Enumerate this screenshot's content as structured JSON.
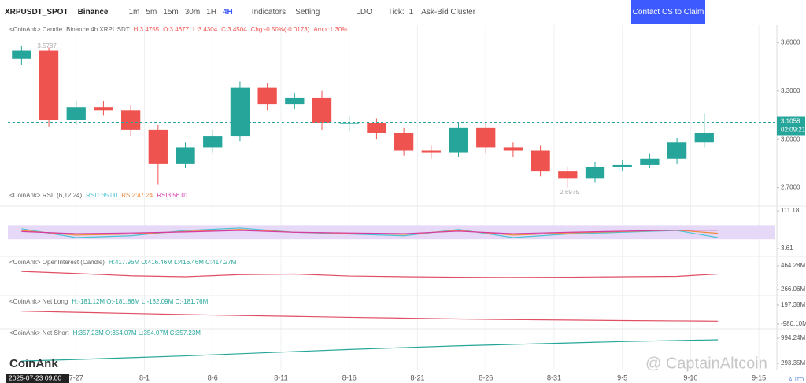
{
  "toolbar": {
    "symbol": "XRPUSDT_SPOT",
    "exchange": "Binance",
    "intervals": [
      "1m",
      "5m",
      "15m",
      "30m",
      "1H",
      "4H"
    ],
    "active_interval": "4H",
    "indicators": "Indicators",
    "setting": "Setting",
    "coin": "LDO",
    "tick": "Tick:",
    "tick_value": "1",
    "cluster": "Ask-Bid Cluster",
    "cta": "Contact CS to Claim"
  },
  "watermark": "CoinAnk",
  "credit": "@ CaptainAltcoin",
  "cursor_time": "2025-07-23 09:00",
  "auto": "AUTO",
  "countdown": "02:09:21",
  "chart_data": [
    {
      "type": "candlestick",
      "title": "<CoinAnk> Candle",
      "subtitle": "Binance 4h XRPUSDT",
      "legend_text": [
        "H:3.4755",
        "O:3.4677",
        "L:3.4304",
        "C:3.4504",
        "Chg:-0.50%(-0.0173)",
        "Ampl:1.30%"
      ],
      "up_color": "#26a69a",
      "down_color": "#ef5350",
      "x": [
        0,
        2,
        4,
        6,
        8,
        10,
        12,
        14,
        16,
        18,
        20,
        22,
        24,
        26,
        28,
        30,
        32,
        34,
        36,
        38,
        40,
        42,
        44,
        46,
        48,
        50
      ],
      "open": [
        3.5,
        3.55,
        3.12,
        3.2,
        3.18,
        3.06,
        2.85,
        2.95,
        3.02,
        3.32,
        3.22,
        3.26,
        3.1,
        3.1,
        3.04,
        2.93,
        2.92,
        3.07,
        2.95,
        2.93,
        2.8,
        2.76,
        2.83,
        2.84,
        2.88,
        2.98
      ],
      "high": [
        3.58,
        3.57,
        3.24,
        3.24,
        3.21,
        3.09,
        2.98,
        3.06,
        3.36,
        3.35,
        3.29,
        3.3,
        3.14,
        3.13,
        3.07,
        2.96,
        3.1,
        3.1,
        2.98,
        2.96,
        2.83,
        2.86,
        2.87,
        2.91,
        3.01,
        3.16
      ],
      "low": [
        3.46,
        3.08,
        3.09,
        3.15,
        3.02,
        2.72,
        2.82,
        2.92,
        2.99,
        3.18,
        3.19,
        3.06,
        3.05,
        3.0,
        2.9,
        2.88,
        2.89,
        2.91,
        2.89,
        2.77,
        2.7,
        2.73,
        2.8,
        2.82,
        2.85,
        2.95
      ],
      "close": [
        3.55,
        3.12,
        3.2,
        3.18,
        3.06,
        2.85,
        2.95,
        3.02,
        3.32,
        3.22,
        3.26,
        3.1,
        3.1,
        3.04,
        2.93,
        2.92,
        3.07,
        2.95,
        2.93,
        2.8,
        2.76,
        2.83,
        2.84,
        2.88,
        2.98,
        3.04
      ],
      "high_mark": 3.5787,
      "low_mark": 2.6975,
      "last_price": 3.1058,
      "xlim": [
        -1,
        55.2
      ],
      "xticks": [
        {
          "value": 4,
          "label": "7-27"
        },
        {
          "value": 9,
          "label": "8-1"
        },
        {
          "value": 14,
          "label": "8-6"
        },
        {
          "value": 19,
          "label": "8-11"
        },
        {
          "value": 24,
          "label": "8-16"
        },
        {
          "value": 29,
          "label": "8-21"
        },
        {
          "value": 34,
          "label": "8-26"
        },
        {
          "value": 39,
          "label": "8-31"
        },
        {
          "value": 44,
          "label": "9-5"
        },
        {
          "value": 49,
          "label": "9-10"
        },
        {
          "value": 54,
          "label": "9-15"
        }
      ],
      "ylim": [
        2.62,
        3.66
      ],
      "yticks": [
        {
          "value": 3.6,
          "label": "3.6000"
        },
        {
          "value": 3.3,
          "label": "3.3000"
        },
        {
          "value": 3.0,
          "label": "3.0000"
        },
        {
          "value": 2.7,
          "label": "2.7000"
        }
      ]
    },
    {
      "type": "line",
      "title": "<CoinAnk> RSI",
      "subtitle": "(6,12,24)",
      "band": [
        30,
        70
      ],
      "band_color": "#e6d9f7",
      "x": [
        0,
        4,
        8,
        12,
        16,
        20,
        24,
        28,
        32,
        36,
        40,
        44,
        48,
        51
      ],
      "series": [
        {
          "name": "RSI1:35.00",
          "color": "#4dc3d6",
          "values": [
            60,
            35,
            40,
            55,
            62,
            50,
            45,
            40,
            58,
            35,
            45,
            50,
            55,
            35
          ]
        },
        {
          "name": "RSI2:47.24",
          "color": "#f08a3c",
          "values": [
            55,
            42,
            45,
            52,
            58,
            50,
            47,
            44,
            55,
            42,
            48,
            52,
            56,
            47
          ]
        },
        {
          "name": "RSI3:56.01",
          "color": "#d63aa4",
          "values": [
            52,
            46,
            48,
            51,
            55,
            50,
            48,
            46,
            53,
            46,
            50,
            53,
            56,
            56
          ]
        }
      ],
      "ylim": [
        3.61,
        111.18
      ],
      "yticks": [
        111.18,
        3.61
      ]
    },
    {
      "type": "line",
      "title": "<CoinAnk> OpenInterest (Candle)",
      "legend_text": "H:417.96M O:416.46M L:416.46M C:417.27M",
      "x": [
        0,
        4,
        8,
        12,
        16,
        20,
        24,
        28,
        32,
        36,
        40,
        44,
        48,
        51
      ],
      "series": [
        {
          "color": "#e04e63",
          "values": [
            417,
            400,
            380,
            372,
            390,
            395,
            378,
            372,
            368,
            366,
            368,
            372,
            375,
            395
          ]
        }
      ],
      "ylim": [
        266.06,
        464.28
      ],
      "yticks": [
        {
          "value": 464.28,
          "label": "464.28M"
        },
        {
          "value": 266.06,
          "label": "266.06M"
        }
      ]
    },
    {
      "type": "line",
      "title": "<CoinAnk> Net Long",
      "legend_text": "H:-181.12M O:-181.86M L:-182.09M C:-181.76M",
      "x": [
        0,
        4,
        8,
        12,
        16,
        20,
        24,
        28,
        32,
        36,
        40,
        44,
        48,
        51
      ],
      "series": [
        {
          "color": "#e04e63",
          "values": [
            -181,
            -250,
            -320,
            -390,
            -450,
            -500,
            -560,
            -610,
            -660,
            -700,
            -730,
            -760,
            -780,
            -800
          ]
        }
      ],
      "ylim": [
        -980.1,
        197.38
      ],
      "yticks": [
        {
          "value": 197.38,
          "label": "197.38M"
        },
        {
          "value": -980.1,
          "label": "-980.10M"
        }
      ]
    },
    {
      "type": "line",
      "title": "<CoinAnk> Net Short",
      "legend_text": "H:357.23M O:354.07M L:354.07M C:357.23M",
      "x": [
        0,
        4,
        8,
        12,
        16,
        20,
        24,
        28,
        32,
        36,
        40,
        44,
        48,
        51
      ],
      "series": [
        {
          "color": "#26a69a",
          "values": [
            357,
            400,
            450,
            500,
            560,
            620,
            680,
            730,
            780,
            820,
            860,
            900,
            930,
            950
          ]
        }
      ],
      "ylim": [
        293.35,
        994.24
      ],
      "yticks": [
        {
          "value": 994.24,
          "label": "994.24M"
        },
        {
          "value": 293.35,
          "label": "293.35M"
        }
      ]
    }
  ]
}
